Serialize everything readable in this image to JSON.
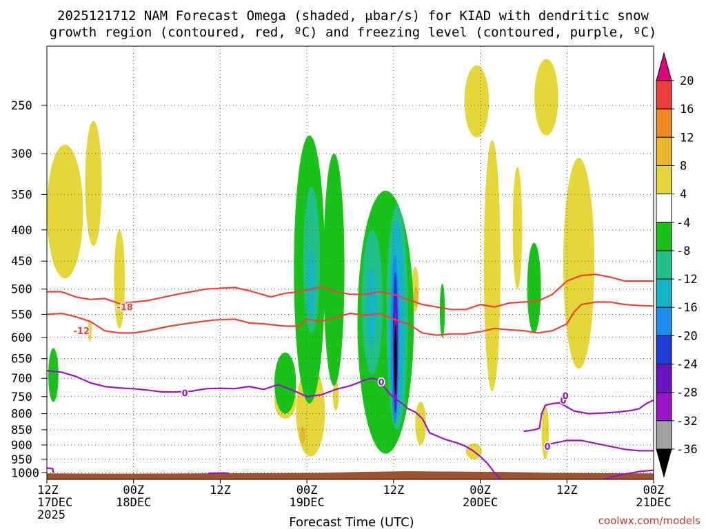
{
  "chart_data": {
    "type": "heatmap",
    "title_line1": "2025121712 NAM Forecast Omega (shaded, μbar/s) for KIAD with dendritic snow",
    "title_line2": "growth region (contoured, red, ºC) and freezing level (contoured, purple, ºC)",
    "xlabel": "Forecast Time (UTC)",
    "ylabel": "",
    "source": "coolwx.com/models",
    "x_range_hours": [
      0,
      84
    ],
    "y_range_hpa": [
      1025,
      200
    ],
    "y_ticks": [
      250,
      300,
      350,
      400,
      450,
      500,
      550,
      600,
      650,
      700,
      750,
      800,
      850,
      900,
      950,
      1000
    ],
    "x_ticks": [
      {
        "h": 0,
        "lines": [
          "12Z",
          "17DEC",
          "2025"
        ]
      },
      {
        "h": 12,
        "lines": [
          "00Z",
          "18DEC"
        ]
      },
      {
        "h": 24,
        "lines": [
          "12Z"
        ]
      },
      {
        "h": 36,
        "lines": [
          "00Z",
          "19DEC"
        ]
      },
      {
        "h": 48,
        "lines": [
          "12Z"
        ]
      },
      {
        "h": 60,
        "lines": [
          "00Z",
          "20DEC"
        ]
      },
      {
        "h": 72,
        "lines": [
          "12Z"
        ]
      },
      {
        "h": 84,
        "lines": [
          "00Z",
          "21DEC"
        ]
      }
    ],
    "colorbar": {
      "levels": [
        20,
        16,
        12,
        8,
        4,
        -4,
        -8,
        -12,
        -16,
        -20,
        -24,
        -28,
        -32,
        -36
      ],
      "colors": [
        "#e0007f",
        "#ef3b3b",
        "#ef8a22",
        "#e8b62a",
        "#e5d63a",
        "#ffffff",
        "#19c219",
        "#21c088",
        "#13b4c4",
        "#1a8df0",
        "#1f3bd6",
        "#6a12c6",
        "#9a13c6",
        "#a0a0a0",
        "#000000"
      ]
    },
    "omega_colors": {
      "c4": "#e5d63a",
      "c8": "#e8b62a",
      "cm4": "#19c219",
      "cm8": "#21c088",
      "cm12": "#13b4c4",
      "cm16": "#1a8df0",
      "cm20": "#1f3bd6",
      "cm24": "#6a12c6",
      "cm28": "#9a13c6",
      "cm36": "#000000"
    },
    "omega_regions": [
      {
        "level": "c4",
        "h0": 0.0,
        "h1": 5.0,
        "p_top": 290,
        "p_bot": 480
      },
      {
        "level": "c4",
        "h0": 5.3,
        "h1": 7.6,
        "p_top": 265,
        "p_bot": 425
      },
      {
        "level": "c4",
        "h0": 9.3,
        "h1": 10.8,
        "p_top": 400,
        "p_bot": 580
      },
      {
        "level": "c4",
        "h0": 5.7,
        "h1": 6.2,
        "p_top": 560,
        "p_bot": 610
      },
      {
        "level": "c4",
        "h0": 31.5,
        "h1": 34.5,
        "p_top": 715,
        "p_bot": 815
      },
      {
        "level": "c4",
        "h0": 34.5,
        "h1": 38.5,
        "p_top": 670,
        "p_bot": 940
      },
      {
        "level": "c4",
        "h0": 39.6,
        "h1": 40.4,
        "p_top": 705,
        "p_bot": 790
      },
      {
        "level": "c4",
        "h0": 47.8,
        "h1": 48.6,
        "p_top": 615,
        "p_bot": 700
      },
      {
        "level": "c4",
        "h0": 50.5,
        "h1": 51.5,
        "p_top": 460,
        "p_bot": 545
      },
      {
        "level": "c4",
        "h0": 51.0,
        "h1": 52.5,
        "p_top": 765,
        "p_bot": 900
      },
      {
        "level": "c4",
        "h0": 58.0,
        "h1": 60.2,
        "p_top": 895,
        "p_bot": 950
      },
      {
        "level": "c4",
        "h0": 57.8,
        "h1": 61.2,
        "p_top": 215,
        "p_bot": 282
      },
      {
        "level": "c4",
        "h0": 60.5,
        "h1": 62.8,
        "p_top": 285,
        "p_bot": 735
      },
      {
        "level": "c4",
        "h0": 64.5,
        "h1": 65.8,
        "p_top": 315,
        "p_bot": 500
      },
      {
        "level": "c4",
        "h0": 67.5,
        "h1": 70.8,
        "p_top": 210,
        "p_bot": 280
      },
      {
        "level": "c4",
        "h0": 68.5,
        "h1": 69.5,
        "p_top": 775,
        "p_bot": 950
      },
      {
        "level": "c4",
        "h0": 71.5,
        "h1": 75.8,
        "p_top": 305,
        "p_bot": 675
      },
      {
        "level": "c8",
        "h0": 35.0,
        "h1": 35.8,
        "p_top": 840,
        "p_bot": 895
      },
      {
        "level": "c8",
        "h0": 50.8,
        "h1": 51.4,
        "p_top": 495,
        "p_bot": 535
      },
      {
        "level": "cm4",
        "h0": 0.2,
        "h1": 1.6,
        "p_top": 625,
        "p_bot": 765
      },
      {
        "level": "cm4",
        "h0": 31.5,
        "h1": 34.5,
        "p_top": 635,
        "p_bot": 800
      },
      {
        "level": "cm4",
        "h0": 34.2,
        "h1": 38.5,
        "p_top": 280,
        "p_bot": 770
      },
      {
        "level": "cm4",
        "h0": 38.3,
        "h1": 41.2,
        "p_top": 300,
        "p_bot": 720
      },
      {
        "level": "cm4",
        "h0": 43.0,
        "h1": 50.8,
        "p_top": 345,
        "p_bot": 930
      },
      {
        "level": "cm4",
        "h0": 54.4,
        "h1": 55.1,
        "p_top": 490,
        "p_bot": 600
      },
      {
        "level": "cm4",
        "h0": 66.5,
        "h1": 68.4,
        "p_top": 420,
        "p_bot": 590
      },
      {
        "level": "cm8",
        "h0": 35.5,
        "h1": 37.8,
        "p_top": 340,
        "p_bot": 590
      },
      {
        "level": "cm8",
        "h0": 43.6,
        "h1": 46.5,
        "p_top": 400,
        "p_bot": 690
      },
      {
        "level": "cm8",
        "h0": 47.0,
        "h1": 50.0,
        "p_top": 365,
        "p_bot": 850
      },
      {
        "level": "cm12",
        "h0": 36.1,
        "h1": 37.1,
        "p_top": 430,
        "p_bot": 560
      },
      {
        "level": "cm12",
        "h0": 44.3,
        "h1": 45.6,
        "p_top": 460,
        "p_bot": 620
      },
      {
        "level": "cm12",
        "h0": 47.4,
        "h1": 49.5,
        "p_top": 385,
        "p_bot": 810
      },
      {
        "level": "cm16",
        "h0": 47.6,
        "h1": 48.8,
        "p_top": 440,
        "p_bot": 830
      },
      {
        "level": "cm20",
        "h0": 47.9,
        "h1": 48.6,
        "p_top": 470,
        "p_bot": 800
      },
      {
        "level": "cm24",
        "h0": 48.0,
        "h1": 48.55,
        "p_top": 510,
        "p_bot": 780
      },
      {
        "level": "cm28",
        "h0": 48.05,
        "h1": 48.5,
        "p_top": 545,
        "p_bot": 760
      },
      {
        "level": "cm36",
        "h0": 48.1,
        "h1": 48.45,
        "p_top": 570,
        "p_bot": 745
      }
    ],
    "contours_dgz": [
      {
        "label": "-18",
        "label_h": 10.8,
        "label_p": 535,
        "points": [
          [
            0,
            505
          ],
          [
            2,
            505
          ],
          [
            4,
            515
          ],
          [
            6,
            520
          ],
          [
            8,
            518
          ],
          [
            10,
            528
          ],
          [
            14,
            522
          ],
          [
            18,
            510
          ],
          [
            22,
            500
          ],
          [
            26,
            497
          ],
          [
            28,
            503
          ],
          [
            31,
            515
          ],
          [
            33,
            508
          ],
          [
            35,
            505
          ],
          [
            36,
            502
          ],
          [
            38,
            495
          ],
          [
            40,
            505
          ],
          [
            42,
            510
          ],
          [
            44,
            510
          ],
          [
            46,
            505
          ],
          [
            48,
            510
          ],
          [
            50,
            520
          ],
          [
            52,
            530
          ],
          [
            54,
            535
          ],
          [
            56,
            540
          ],
          [
            58,
            540
          ],
          [
            60,
            530
          ],
          [
            62,
            535
          ],
          [
            64,
            527
          ],
          [
            66,
            525
          ],
          [
            68,
            523
          ],
          [
            70,
            510
          ],
          [
            72,
            485
          ],
          [
            74,
            475
          ],
          [
            76,
            473
          ],
          [
            78,
            478
          ],
          [
            80,
            485
          ],
          [
            82,
            485
          ],
          [
            84,
            485
          ]
        ]
      },
      {
        "label": "-12",
        "label_h": 4.8,
        "label_p": 585,
        "points": [
          [
            0,
            550
          ],
          [
            2,
            548
          ],
          [
            4,
            555
          ],
          [
            6,
            565
          ],
          [
            8,
            585
          ],
          [
            10,
            590
          ],
          [
            12,
            590
          ],
          [
            14,
            585
          ],
          [
            17,
            575
          ],
          [
            20,
            568
          ],
          [
            23,
            562
          ],
          [
            26,
            560
          ],
          [
            28,
            568
          ],
          [
            30,
            570
          ],
          [
            33,
            575
          ],
          [
            35,
            575
          ],
          [
            36,
            560
          ],
          [
            38,
            565
          ],
          [
            40,
            556
          ],
          [
            42,
            548
          ],
          [
            44,
            552
          ],
          [
            46,
            548
          ],
          [
            48,
            560
          ],
          [
            50,
            570
          ],
          [
            52,
            590
          ],
          [
            54,
            595
          ],
          [
            56,
            592
          ],
          [
            58,
            592
          ],
          [
            60,
            587
          ],
          [
            62,
            580
          ],
          [
            64,
            583
          ],
          [
            66,
            585
          ],
          [
            68,
            590
          ],
          [
            70,
            585
          ],
          [
            72,
            570
          ],
          [
            73,
            545
          ],
          [
            74,
            530
          ],
          [
            76,
            525
          ],
          [
            78,
            525
          ],
          [
            80,
            530
          ],
          [
            82,
            532
          ],
          [
            84,
            533
          ]
        ]
      }
    ],
    "contours_freeze": [
      {
        "label": "0",
        "label_h": 19.1,
        "label_p": 740,
        "points": [
          [
            0,
            680
          ],
          [
            2,
            684
          ],
          [
            4,
            695
          ],
          [
            6,
            712
          ],
          [
            8,
            722
          ],
          [
            10,
            726
          ],
          [
            12,
            728
          ],
          [
            14,
            732
          ],
          [
            16,
            737
          ],
          [
            18,
            737
          ],
          [
            20,
            735
          ],
          [
            22,
            728
          ],
          [
            24,
            727
          ],
          [
            26,
            728
          ],
          [
            28,
            722
          ],
          [
            30,
            730
          ],
          [
            32,
            717
          ],
          [
            34,
            732
          ],
          [
            36,
            750
          ],
          [
            38,
            745
          ],
          [
            40,
            730
          ],
          [
            42,
            720
          ],
          [
            44,
            705
          ],
          [
            45,
            700
          ],
          [
            46,
            705
          ],
          [
            46.5,
            720
          ],
          [
            47.6,
            745
          ],
          [
            48.5,
            760
          ],
          [
            49.2,
            770
          ],
          [
            50,
            785
          ],
          [
            51,
            795
          ],
          [
            52,
            815
          ],
          [
            53,
            860
          ],
          [
            55,
            880
          ],
          [
            57,
            895
          ],
          [
            58,
            905
          ],
          [
            59,
            920
          ],
          [
            60,
            940
          ],
          [
            61,
            965
          ],
          [
            62,
            1000
          ],
          [
            63,
            1030
          ]
        ]
      },
      {
        "label": "0",
        "label_h": 71.5,
        "label_p": 760,
        "points": [
          [
            66,
            855
          ],
          [
            67.5,
            850
          ],
          [
            68.2,
            845
          ],
          [
            68.5,
            800
          ],
          [
            69,
            775
          ],
          [
            70,
            770
          ],
          [
            71,
            768
          ],
          [
            72,
            780
          ],
          [
            73,
            792
          ],
          [
            75,
            800
          ],
          [
            77,
            798
          ],
          [
            79,
            795
          ],
          [
            81,
            790
          ],
          [
            82,
            785
          ],
          [
            83,
            770
          ],
          [
            84,
            760
          ]
        ]
      },
      {
        "label": "0",
        "label_h": 69.3,
        "label_p": 905,
        "points": [
          [
            69,
            900
          ],
          [
            70,
            895
          ],
          [
            72,
            885
          ],
          [
            74,
            885
          ],
          [
            76,
            895
          ],
          [
            78,
            905
          ],
          [
            80,
            915
          ],
          [
            82,
            920
          ],
          [
            84,
            920
          ]
        ]
      },
      {
        "label": "",
        "label_h": 0,
        "label_p": 0,
        "points": [
          [
            77,
            1025
          ],
          [
            79,
            1010
          ],
          [
            81,
            1000
          ],
          [
            82,
            995
          ],
          [
            84,
            990
          ]
        ]
      },
      {
        "label": "",
        "label_h": 0,
        "label_p": 0,
        "points": [
          [
            0,
            982
          ],
          [
            0.8,
            984
          ],
          [
            0.9,
            1000
          ]
        ]
      },
      {
        "label": "",
        "label_h": 0,
        "label_p": 0,
        "points": [
          [
            22.3,
            1002
          ],
          [
            24.5,
            1000
          ],
          [
            25.2,
            1002
          ]
        ]
      },
      {
        "label": "0",
        "label_h": 46.3,
        "label_p": 710,
        "points": []
      },
      {
        "label": "0",
        "label_h": 71.8,
        "label_p": 748,
        "points": []
      }
    ],
    "terrain": {
      "color": "#a0522d",
      "surface_p": [
        [
          0,
          1002
        ],
        [
          10,
          1003
        ],
        [
          20,
          1002
        ],
        [
          30,
          1001
        ],
        [
          38,
          1000
        ],
        [
          44,
          996
        ],
        [
          50,
          994
        ],
        [
          56,
          995
        ],
        [
          62,
          996
        ],
        [
          70,
          1000
        ],
        [
          84,
          1002
        ]
      ]
    }
  }
}
